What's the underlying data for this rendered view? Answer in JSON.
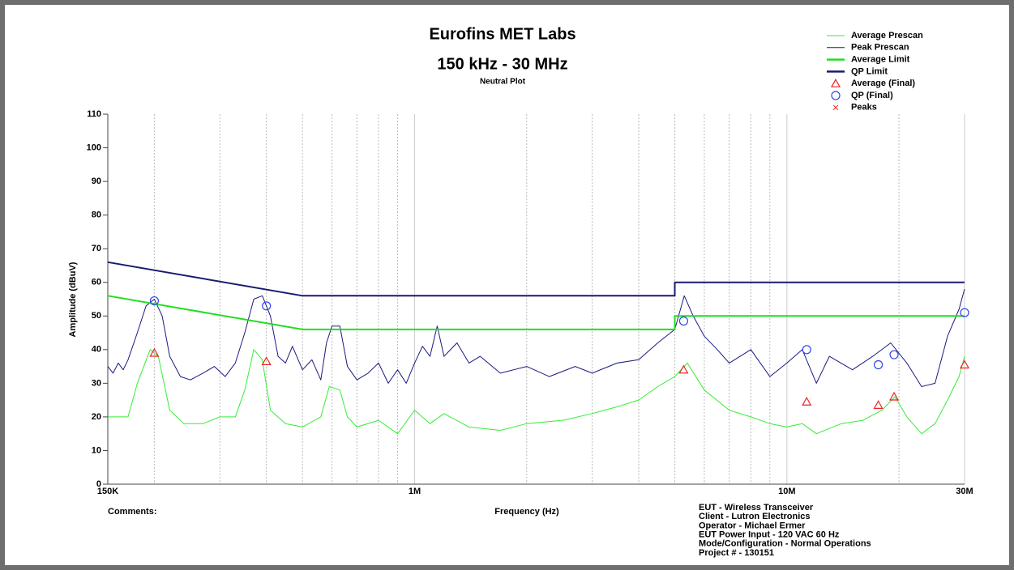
{
  "chart_data": {
    "type": "line",
    "title": "Eurofins MET Labs",
    "subtitle": "150 kHz - 30 MHz",
    "plot_name": "Neutral Plot",
    "ylabel": "Amplitude (dBuV)",
    "xlabel": "Frequency (Hz)",
    "comments_label": "Comments:",
    "info": [
      "EUT - Wireless Transceiver",
      "Client - Lutron Electronics",
      "Operator - Michael Ermer",
      "EUT Power Input - 120 VAC 60 Hz",
      "Mode/Configuration - Normal Operations",
      "Project # - 130151"
    ],
    "xscale": "log",
    "grid": "x",
    "legend": "top-right",
    "xlim": [
      150000,
      30000000
    ],
    "ylim": [
      0,
      110
    ],
    "xticks": [
      {
        "value": 150000,
        "label": "150K"
      },
      {
        "value": 1000000,
        "label": "1M"
      },
      {
        "value": 10000000,
        "label": "10M"
      },
      {
        "value": 30000000,
        "label": "30M"
      }
    ],
    "xminor": [
      200000,
      300000,
      400000,
      500000,
      600000,
      700000,
      800000,
      900000,
      2000000,
      3000000,
      4000000,
      5000000,
      6000000,
      7000000,
      8000000,
      9000000,
      20000000
    ],
    "yticks": [
      0,
      10,
      20,
      30,
      40,
      50,
      60,
      70,
      80,
      90,
      100,
      110
    ],
    "series": [
      {
        "name": "Average Prescan",
        "color": "#33ee33",
        "kind": "trace",
        "x": [
          150000,
          160000,
          170000,
          180000,
          195000,
          205000,
          220000,
          240000,
          270000,
          300000,
          330000,
          350000,
          370000,
          390000,
          410000,
          450000,
          500000,
          560000,
          590000,
          630000,
          660000,
          700000,
          800000,
          900000,
          1000000,
          1100000,
          1200000,
          1400000,
          1700000,
          2000000,
          2500000,
          3000000,
          3500000,
          4000000,
          4500000,
          5000000,
          5400000,
          6000000,
          7000000,
          8000000,
          9000000,
          10000000,
          11000000,
          12000000,
          14000000,
          16000000,
          18000000,
          19500000,
          21000000,
          23000000,
          25000000,
          27000000,
          29000000,
          30000000
        ],
        "values": [
          20,
          20,
          20,
          30,
          40,
          38,
          22,
          18,
          18,
          20,
          20,
          28,
          40,
          37,
          22,
          18,
          17,
          20,
          29,
          28,
          20,
          17,
          19,
          15,
          22,
          18,
          21,
          17,
          16,
          18,
          19,
          21,
          23,
          25,
          29,
          32,
          36,
          28,
          22,
          20,
          18,
          17,
          18,
          15,
          18,
          19,
          22,
          26,
          20,
          15,
          18,
          25,
          32,
          38
        ]
      },
      {
        "name": "Peak Prescan",
        "color": "#1a1a80",
        "kind": "trace",
        "x": [
          150000,
          155000,
          160000,
          165000,
          170000,
          180000,
          190000,
          200000,
          210000,
          220000,
          235000,
          250000,
          270000,
          290000,
          310000,
          330000,
          350000,
          370000,
          390000,
          410000,
          430000,
          450000,
          470000,
          500000,
          530000,
          560000,
          580000,
          600000,
          630000,
          660000,
          700000,
          750000,
          800000,
          850000,
          900000,
          950000,
          1000000,
          1050000,
          1100000,
          1150000,
          1200000,
          1300000,
          1400000,
          1500000,
          1700000,
          2000000,
          2300000,
          2700000,
          3000000,
          3500000,
          4000000,
          4500000,
          5000000,
          5300000,
          5600000,
          6000000,
          6500000,
          7000000,
          8000000,
          9000000,
          10000000,
          11000000,
          12000000,
          13000000,
          15000000,
          17000000,
          19000000,
          21000000,
          23000000,
          25000000,
          27000000,
          29000000,
          30000000
        ],
        "values": [
          35,
          33,
          36,
          34,
          37,
          45,
          53,
          55,
          50,
          38,
          32,
          31,
          33,
          35,
          32,
          36,
          45,
          55,
          56,
          50,
          38,
          36,
          41,
          34,
          37,
          31,
          42,
          47,
          47,
          35,
          31,
          33,
          36,
          30,
          34,
          30,
          36,
          41,
          38,
          47,
          38,
          42,
          36,
          38,
          33,
          35,
          32,
          35,
          33,
          36,
          37,
          42,
          46,
          56,
          50,
          44,
          40,
          36,
          40,
          32,
          36,
          40,
          30,
          38,
          34,
          38,
          42,
          36,
          29,
          30,
          44,
          52,
          58
        ]
      },
      {
        "name": "Average Limit",
        "color": "#22dd22",
        "kind": "limit",
        "x": [
          150000,
          500000,
          5000000,
          5000000,
          30000000
        ],
        "values": [
          56,
          46,
          46,
          50,
          50
        ]
      },
      {
        "name": "QP Limit",
        "color": "#1a1a70",
        "kind": "limit",
        "x": [
          150000,
          500000,
          5000000,
          5000000,
          30000000
        ],
        "values": [
          66,
          56,
          56,
          60,
          60
        ]
      },
      {
        "name": "Average (Final)",
        "color": "#ee2222",
        "kind": "triangle",
        "x": [
          200000,
          400000,
          5280000,
          11300000,
          17600000,
          19400000,
          30000000
        ],
        "values": [
          39,
          36.5,
          34,
          24.5,
          23.5,
          26,
          35.5
        ]
      },
      {
        "name": "QP (Final)",
        "color": "#3344ee",
        "kind": "circle",
        "x": [
          200000,
          400000,
          5280000,
          11300000,
          17600000,
          19400000,
          30000000
        ],
        "values": [
          54.5,
          53,
          48.5,
          40,
          35.5,
          38.5,
          51
        ]
      },
      {
        "name": "Peaks",
        "color": "#ee2222",
        "kind": "cross",
        "x": [],
        "values": []
      }
    ]
  }
}
